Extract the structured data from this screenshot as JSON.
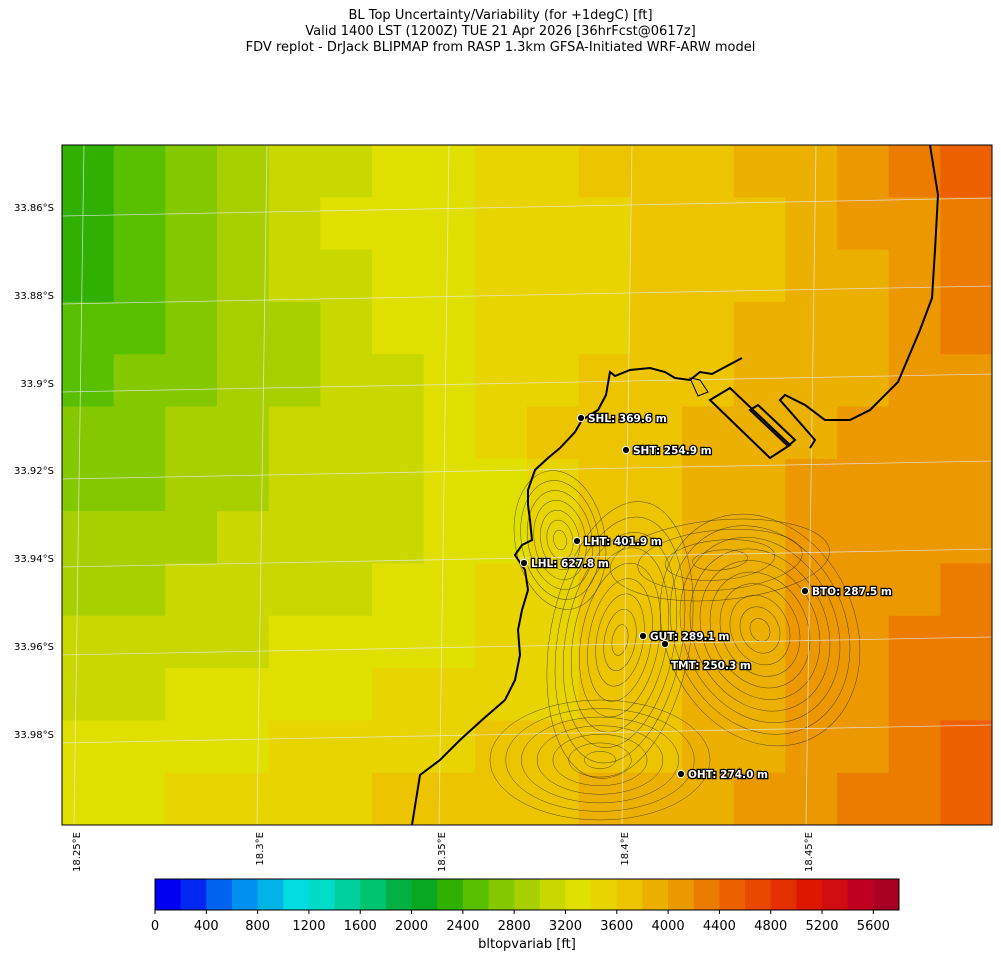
{
  "title": {
    "line1": "BL Top Uncertainty/Variability (for +1degC) [ft]",
    "line2": "Valid 1400 LST (1200Z) TUE 21 Apr 2026 [36hrFcst@0617z]",
    "line3": "FDV replot - DrJack BLIPMAP from RASP 1.3km GFSA-Initiated WRF-ARW model"
  },
  "map": {
    "latitude_labels": [
      "33.86°S",
      "33.88°S",
      "33.9°S",
      "33.92°S",
      "33.94°S",
      "33.96°S",
      "33.98°S"
    ],
    "longitude_labels": [
      "18.25°E",
      "18.3°E",
      "18.35°E",
      "18.4°E",
      "18.45°E"
    ],
    "field_grid_ft": [
      [
        2200,
        2500,
        2700,
        2950,
        3050,
        3150,
        3300,
        3350,
        3500,
        3550,
        3600,
        3650,
        3600,
        3800,
        3900,
        4050,
        4200,
        4450
      ],
      [
        2250,
        2450,
        2700,
        2900,
        3050,
        3200,
        3300,
        3350,
        3400,
        3450,
        3550,
        3600,
        3650,
        3700,
        3850,
        4000,
        4150,
        4300
      ],
      [
        2300,
        2500,
        2650,
        2850,
        3000,
        3150,
        3250,
        3350,
        3450,
        3500,
        3550,
        3600,
        3700,
        3750,
        3850,
        3950,
        4100,
        4300
      ],
      [
        2400,
        2550,
        2700,
        2800,
        2950,
        3100,
        3250,
        3350,
        3450,
        3500,
        3550,
        3650,
        3700,
        3800,
        3850,
        3950,
        4050,
        4250
      ],
      [
        2500,
        2650,
        2750,
        2850,
        2950,
        3050,
        3150,
        3300,
        3450,
        3550,
        3600,
        3650,
        3750,
        3850,
        3900,
        3950,
        4000,
        4150
      ],
      [
        2600,
        2700,
        2800,
        2900,
        3000,
        3050,
        3100,
        3250,
        3450,
        3600,
        3650,
        3700,
        3800,
        3900,
        3950,
        4000,
        4000,
        4100
      ],
      [
        2700,
        2750,
        2850,
        2950,
        3050,
        3100,
        3150,
        3200,
        3350,
        3550,
        3650,
        3750,
        3850,
        3950,
        4000,
        4000,
        4050,
        4100
      ],
      [
        2800,
        2850,
        2900,
        3000,
        3050,
        3100,
        3150,
        3250,
        3350,
        3500,
        3650,
        3750,
        3850,
        3950,
        4000,
        4050,
        4100,
        4150
      ],
      [
        2900,
        2950,
        3000,
        3050,
        3100,
        3150,
        3200,
        3300,
        3400,
        3500,
        3600,
        3700,
        3800,
        3900,
        4000,
        4050,
        4150,
        4200
      ],
      [
        3000,
        3050,
        3100,
        3150,
        3200,
        3250,
        3300,
        3350,
        3400,
        3500,
        3600,
        3700,
        3800,
        3900,
        4000,
        4100,
        4200,
        4300
      ],
      [
        3100,
        3150,
        3200,
        3250,
        3300,
        3350,
        3400,
        3450,
        3500,
        3550,
        3600,
        3700,
        3800,
        3900,
        4000,
        4100,
        4200,
        4350
      ],
      [
        3200,
        3250,
        3300,
        3350,
        3400,
        3450,
        3500,
        3550,
        3600,
        3650,
        3700,
        3750,
        3850,
        3950,
        4050,
        4150,
        4250,
        4400
      ],
      [
        3300,
        3350,
        3400,
        3450,
        3500,
        3550,
        3600,
        3650,
        3700,
        3750,
        3800,
        3850,
        3900,
        4000,
        4100,
        4200,
        4300,
        4450
      ]
    ],
    "stations": [
      {
        "id": "SHL",
        "label": "SHL: 369.6 m"
      },
      {
        "id": "SHT",
        "label": "SHT: 254.9 m"
      },
      {
        "id": "LHT",
        "label": "LHT: 401.9 m"
      },
      {
        "id": "LHL",
        "label": "LHL: 627.8 m"
      },
      {
        "id": "BTO",
        "label": "BTO: 287.5 m"
      },
      {
        "id": "GUT",
        "label": "GUT: 289.1 m"
      },
      {
        "id": "TMT",
        "label": "TMT: 250.3 m"
      },
      {
        "id": "OHT",
        "label": "OHT: 274.0 m"
      }
    ]
  },
  "colorbar": {
    "tick_labels": [
      "0",
      "400",
      "800",
      "1200",
      "1600",
      "2000",
      "2400",
      "2800",
      "3200",
      "3600",
      "4000",
      "4400",
      "4800",
      "5200",
      "5600"
    ],
    "label": "bltopvariab [ft]",
    "colors": [
      "#0000f0",
      "#0028f0",
      "#0064f0",
      "#0090f0",
      "#00b4e8",
      "#00dce0",
      "#00dcc8",
      "#00d0a0",
      "#00c470",
      "#00b040",
      "#08a820",
      "#30b000",
      "#58c000",
      "#84c800",
      "#a8d000",
      "#c8d800",
      "#e0e000",
      "#e8d400",
      "#ecc400",
      "#ecb000",
      "#ec9800",
      "#ec7c00",
      "#ec6000",
      "#e84800",
      "#e43000",
      "#dc1800",
      "#d00c10",
      "#c00020",
      "#a80020"
    ]
  }
}
